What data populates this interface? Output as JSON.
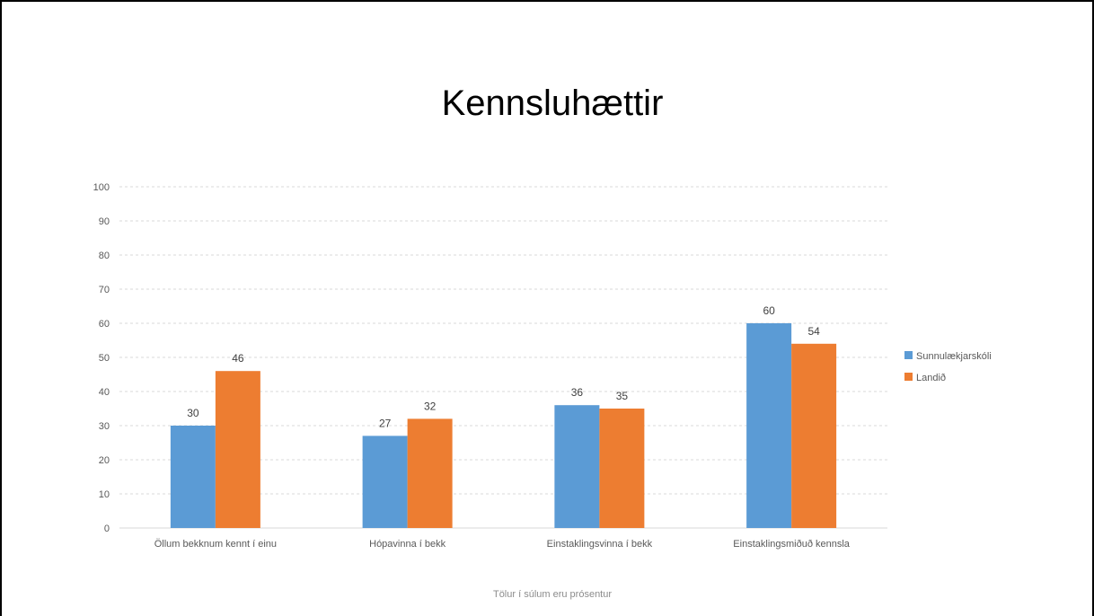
{
  "chart_data": {
    "type": "bar",
    "title": "Kennsluhættir",
    "categories": [
      "Öllum bekknum kennt í einu",
      "Hópavinna í bekk",
      "Einstaklingsvinna í bekk",
      "Einstaklingsmiðuð kennsla"
    ],
    "series": [
      {
        "name": "Sunnulækjarskóli",
        "color": "#5b9bd5",
        "values": [
          30,
          27,
          36,
          60
        ]
      },
      {
        "name": "Landið",
        "color": "#ed7d31",
        "values": [
          46,
          32,
          35,
          54
        ]
      }
    ],
    "y_ticks": [
      0,
      10,
      20,
      30,
      40,
      50,
      60,
      70,
      80,
      90,
      100
    ],
    "ylim": [
      0,
      100
    ],
    "grid": true,
    "legend_position": "right",
    "footnote": "Tölur í súlum eru prósentur"
  }
}
